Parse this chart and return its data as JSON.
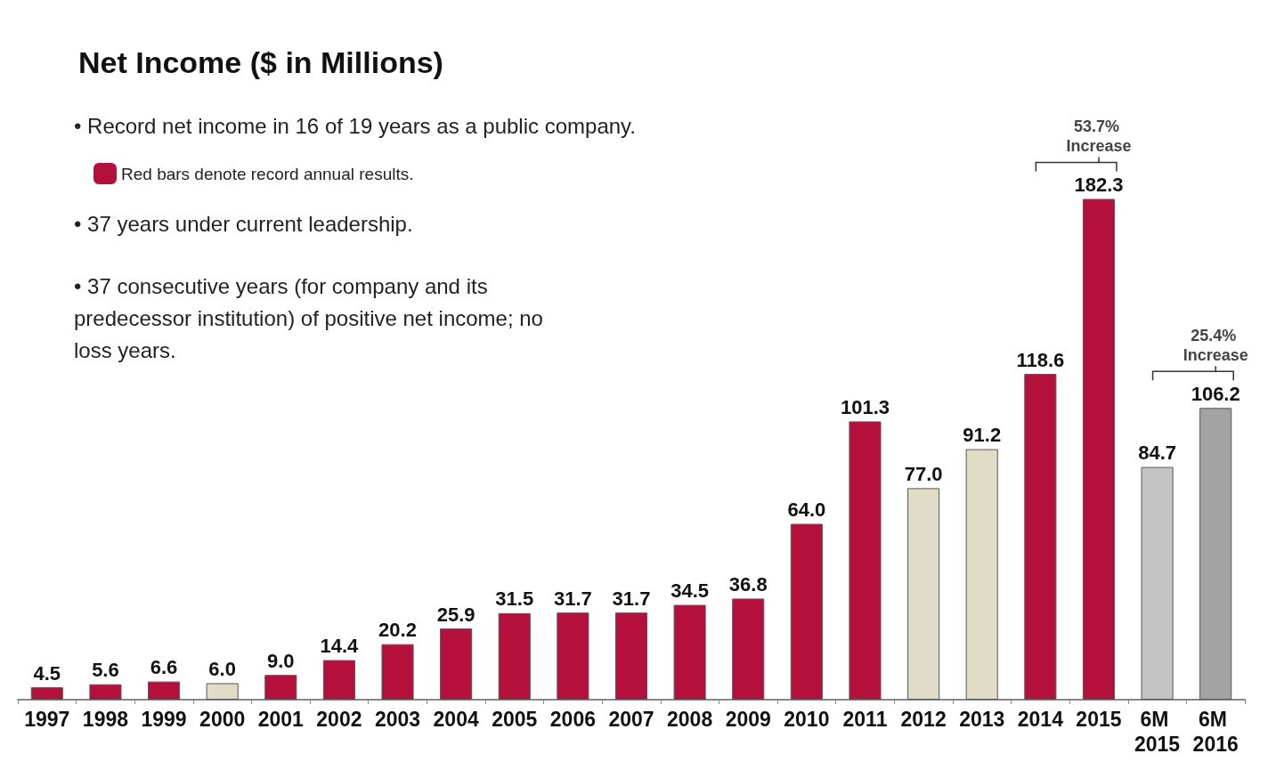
{
  "chart_data": {
    "type": "bar",
    "title": "Net Income ($ in Millions)",
    "stacked": true,
    "data_labels": true,
    "grid": false,
    "legend": "top left",
    "categories": [
      "1997",
      "1998",
      "1999",
      "2000",
      "2001",
      "2002",
      "2003",
      "2004",
      "2005",
      "2006",
      "2007",
      "2008",
      "2009",
      "2010",
      "2011",
      "2012",
      "2013",
      "2014",
      "2015",
      "6M 2015",
      "6M 2016"
    ],
    "series": [
      {
        "name": "Red bars denote record annual results.",
        "color": "#b5103c",
        "values": [
          4.5,
          5.6,
          6.6,
          null,
          9.0,
          14.4,
          20.2,
          25.9,
          31.5,
          31.7,
          31.7,
          34.5,
          36.8,
          64.0,
          101.3,
          null,
          null,
          118.6,
          182.3,
          null,
          null
        ],
        "value_labels": [
          "4.5",
          "5.6",
          "6.6",
          null,
          "9.0",
          "14.4",
          "20.2",
          "25.9",
          "31.5",
          "31.7",
          "31.7",
          "34.5",
          "36.8",
          "64.0",
          "101.3",
          null,
          null,
          "118.6",
          "182.3",
          null,
          null
        ]
      },
      {
        "colors": [
          "#b5103c",
          "#b5103c",
          "#b5103c",
          "#e0dcc6",
          "#b5103c",
          "#b5103c",
          "#b5103c",
          "#b5103c",
          "#b5103c",
          "#b5103c",
          "#b5103c",
          "#b5103c",
          "#b5103c",
          "#b5103c",
          "#b5103c",
          "#e0dcc6",
          "#e0dcc6",
          "#b5103c",
          "#b5103c",
          "#c4c4c4",
          "#a3a3a3"
        ],
        "values": [
          null,
          null,
          null,
          6.0,
          null,
          null,
          null,
          null,
          null,
          null,
          null,
          null,
          null,
          null,
          null,
          77.0,
          91.2,
          null,
          null,
          84.7,
          106.2
        ],
        "value_labels": [
          null,
          null,
          null,
          "6.0",
          null,
          null,
          null,
          null,
          null,
          null,
          null,
          null,
          null,
          null,
          null,
          "77.0",
          "91.2",
          null,
          null,
          "84.7",
          "106.2"
        ]
      }
    ],
    "annotations": [
      "• Record net income in 16 of 19 years as a public company.",
      "• 37 years under current leadership.",
      "• 37 consecutive years (for company and its predecessor institution) of positive net income; no loss years.",
      {
        "text": "53.7% Increase",
        "x": "2015",
        "y": 182.3
      },
      {
        "text": "25.4% Increase",
        "x": "6M 2016",
        "y": 106.2
      }
    ]
  }
}
